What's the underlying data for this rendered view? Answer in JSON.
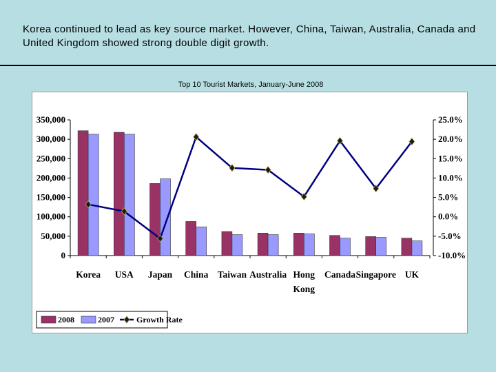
{
  "slide": {
    "title": "Korea continued to lead as key source market.  However, China, Taiwan, Australia, Canada and United Kingdom showed strong double digit growth."
  },
  "chart_data": {
    "type": "bar",
    "title": "Top 10 Tourist Markets, January-June 2008",
    "categories": [
      "Korea",
      "USA",
      "Japan",
      "China",
      "Taiwan",
      "Australia",
      "Hong Kong",
      "Canada",
      "Singapore",
      "UK"
    ],
    "category_lines": [
      [
        "Korea"
      ],
      [
        "USA"
      ],
      [
        "Japan"
      ],
      [
        "China"
      ],
      [
        "Taiwan"
      ],
      [
        "Australia"
      ],
      [
        "Hong",
        "Kong"
      ],
      [
        "Canada"
      ],
      [
        "Singapore"
      ],
      [
        "UK"
      ]
    ],
    "series": [
      {
        "name": "2008",
        "type": "bar",
        "axis": "left",
        "color": "#993366",
        "values": [
          322000,
          318000,
          186000,
          88000,
          62000,
          58000,
          58000,
          52000,
          49000,
          45000
        ]
      },
      {
        "name": "2007",
        "type": "bar",
        "axis": "left",
        "color": "#9999ff",
        "values": [
          313000,
          313000,
          198000,
          74000,
          54000,
          54000,
          56000,
          45000,
          47000,
          38000
        ]
      },
      {
        "name": "Growth Rate",
        "type": "line",
        "axis": "right",
        "color": "#000080",
        "marker_color": "#1a1a1a",
        "values": [
          3.2,
          1.4,
          -5.6,
          20.6,
          12.6,
          12.1,
          5.2,
          19.6,
          7.3,
          19.4
        ]
      }
    ],
    "left_axis": {
      "min": 0,
      "max": 350000,
      "step": 50000,
      "tick_labels": [
        "0",
        "50,000",
        "100,000",
        "150,000",
        "200,000",
        "250,000",
        "300,000",
        "350,000"
      ]
    },
    "right_axis": {
      "min": -10,
      "max": 25,
      "step": 5,
      "tick_labels": [
        "-10.0%",
        "-5.0%",
        "0.0%",
        "5.0%",
        "10.0%",
        "15.0%",
        "20.0%",
        "25.0%"
      ]
    },
    "grid": false,
    "legend_position": "bottom-left"
  }
}
